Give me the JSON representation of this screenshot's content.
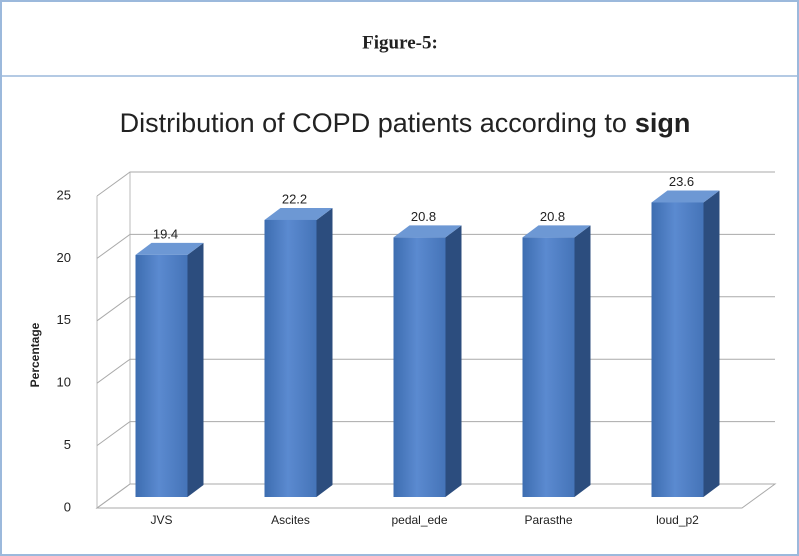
{
  "heading": "Figure-5:",
  "chart_data": {
    "type": "bar3d",
    "title": [
      "Distribution of COPD patients according to",
      "sign"
    ],
    "ylabel": "Percentage",
    "categories": [
      "JVS",
      "Ascites",
      "pedal_ede",
      "Parasthe",
      "loud_p2"
    ],
    "values": [
      19.4,
      22.2,
      20.8,
      20.8,
      23.6
    ],
    "color": "#4a7cc0",
    "ylim": [
      0,
      25
    ],
    "yticks": [
      0,
      5,
      10,
      15,
      20,
      25
    ],
    "grid": true
  }
}
